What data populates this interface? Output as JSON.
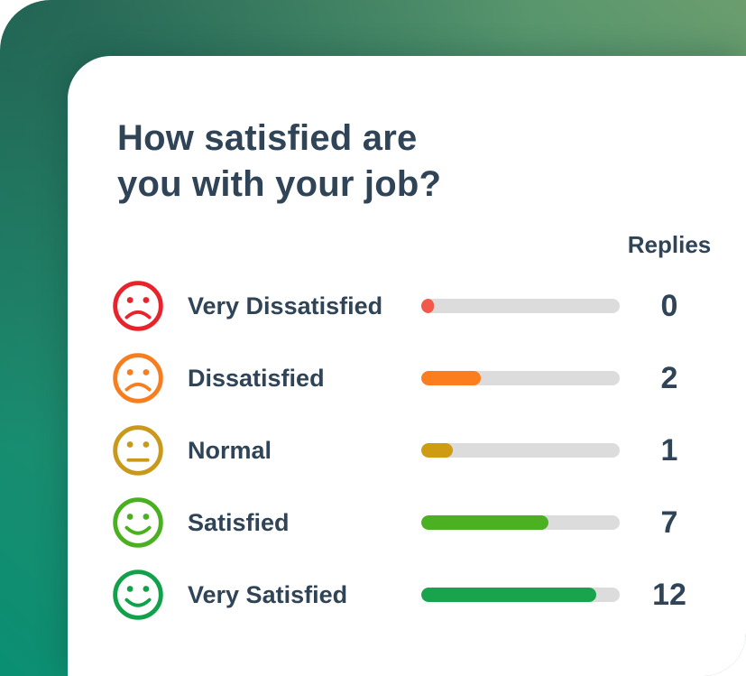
{
  "page": {
    "background": {
      "gradient_bottom_left": "#0a8f72",
      "gradient_top_right": "#6b9d6e",
      "gradient_top_left_shade": "#20745f"
    }
  },
  "card": {
    "title": "How satisfied are you with your job?",
    "replies_header": "Replies",
    "text_color": "#2f4456",
    "track_color": "#dcdcdc",
    "rows": [
      {
        "label": "Very Dissatisfied",
        "replies": "0",
        "icon": "sad-face-icon",
        "color": "#e9232b",
        "bar_color": "#f2594a",
        "bar_percent": 6.4
      },
      {
        "label": "Dissatisfied",
        "replies": "2",
        "icon": "sad-face-icon",
        "color": "#f87d1e",
        "bar_color": "#fb7d1d",
        "bar_percent": 30
      },
      {
        "label": "Normal",
        "replies": "1",
        "icon": "neutral-face-icon",
        "color": "#c9991b",
        "bar_color": "#cf9b10",
        "bar_percent": 16
      },
      {
        "label": "Satisfied",
        "replies": "7",
        "icon": "happy-face-icon",
        "color": "#4bb01f",
        "bar_color": "#4cb122",
        "bar_percent": 64
      },
      {
        "label": "Very Satisfied",
        "replies": "12",
        "icon": "happy-face-icon",
        "color": "#12a14b",
        "bar_color": "#18a44c",
        "bar_percent": 88
      }
    ]
  },
  "chart_data": {
    "type": "bar",
    "orientation": "horizontal",
    "title": "How satisfied are you with your job?",
    "categories": [
      "Very Dissatisfied",
      "Dissatisfied",
      "Normal",
      "Satisfied",
      "Very Satisfied"
    ],
    "values": [
      0,
      2,
      1,
      7,
      12
    ],
    "value_label": "Replies",
    "series_colors": [
      "#f2594a",
      "#fb7d1d",
      "#cf9b10",
      "#4cb122",
      "#18a44c"
    ],
    "grid": false,
    "legend": false
  }
}
